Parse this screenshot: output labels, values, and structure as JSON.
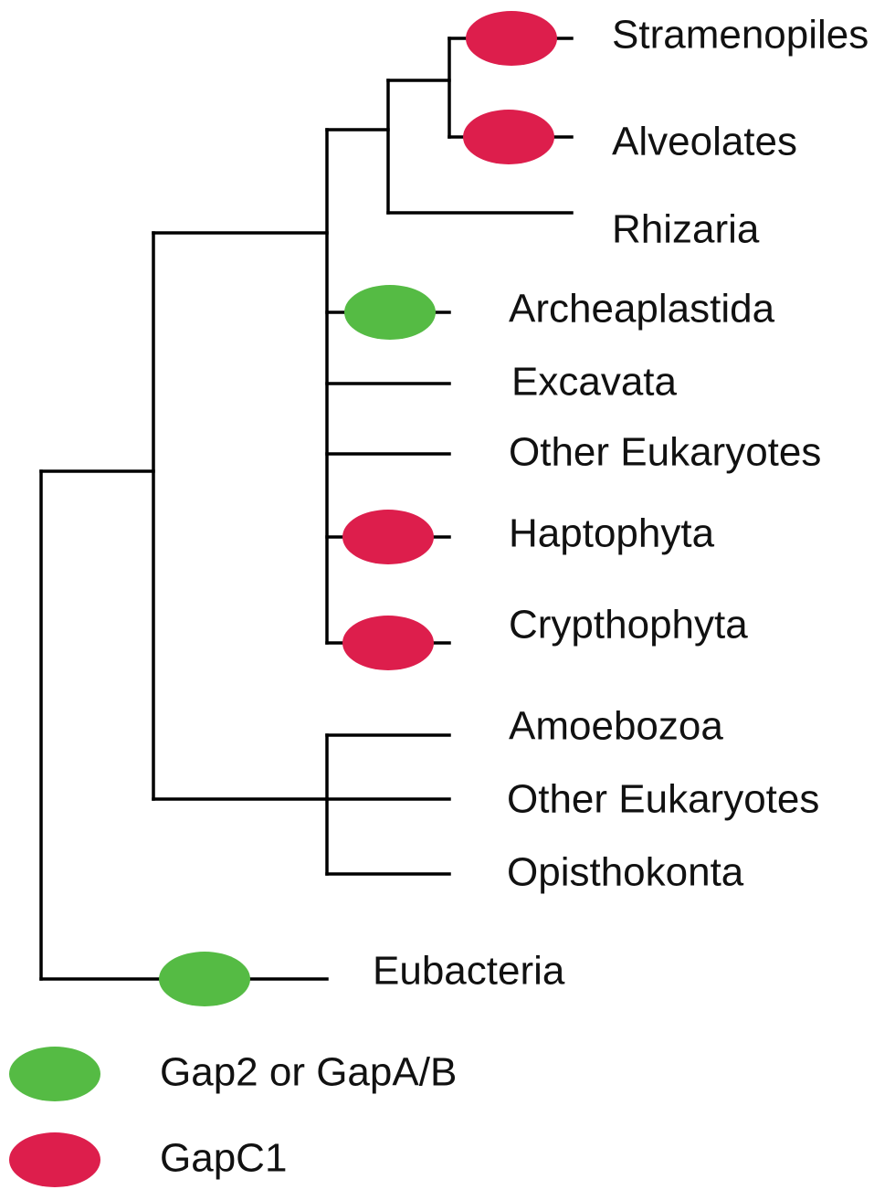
{
  "colors": {
    "gap2": "#55BB44",
    "gapc1": "#DD1E4C",
    "line": "#000000"
  },
  "taxa": {
    "stramenopiles": "Stramenopiles",
    "alveolates": "Alveolates",
    "rhizaria": "Rhizaria",
    "archeaplastida": "Archeaplastida",
    "excavata": "Excavata",
    "other_eukaryotes_1": "Other Eukaryotes",
    "haptophyta": "Haptophyta",
    "crypthophyta": "Crypthophyta",
    "amoebozoa": "Amoebozoa",
    "other_eukaryotes_2": "Other Eukaryotes",
    "opisthokonta": "Opisthokonta",
    "eubacteria": "Eubacteria"
  },
  "markers": {
    "stramenopiles": "gapc1",
    "alveolates": "gapc1",
    "archeaplastida": "gap2",
    "haptophyta": "gapc1",
    "crypthophyta": "gapc1",
    "eubacteria": "gap2"
  },
  "legend": {
    "gap2": "Gap2 or GapA/B",
    "gapc1": "GapC1"
  }
}
